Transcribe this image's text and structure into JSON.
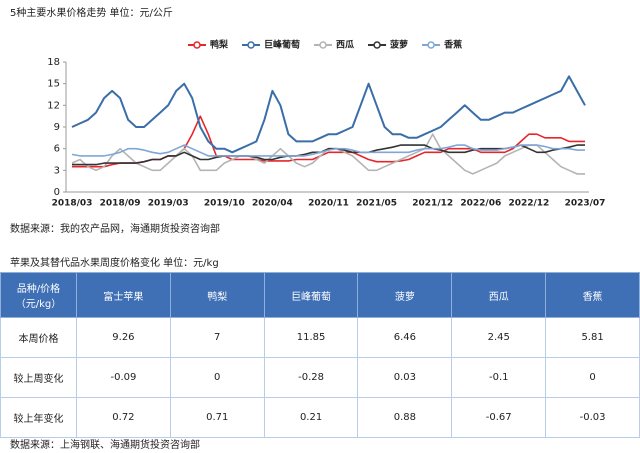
{
  "chart_data": {
    "type": "line",
    "title": "5种主要水果价格走势 单位：元/公斤",
    "categories": [
      "2018/03",
      null,
      null,
      null,
      null,
      null,
      "2018/09",
      null,
      null,
      null,
      null,
      null,
      "2019/03",
      null,
      null,
      null,
      null,
      null,
      null,
      "2019/10",
      null,
      null,
      null,
      null,
      null,
      "2020/04",
      null,
      null,
      null,
      null,
      null,
      null,
      "2020/11",
      null,
      null,
      null,
      null,
      null,
      "2021/05",
      null,
      null,
      null,
      null,
      null,
      null,
      "2021/12",
      null,
      null,
      null,
      null,
      null,
      "2022/06",
      null,
      null,
      null,
      null,
      null,
      "2022/12",
      null,
      null,
      null,
      null,
      null,
      null,
      "2023/07"
    ],
    "series": [
      {
        "name": "鸭梨",
        "color": "#e8262a",
        "values": [
          3.5,
          3.5,
          3.5,
          3.5,
          3.5,
          3.8,
          4,
          4,
          4,
          4.2,
          4.5,
          4.5,
          5,
          5,
          6,
          8,
          10.5,
          8,
          5,
          5,
          4.5,
          4.5,
          4.5,
          4.5,
          4.3,
          4.3,
          4.3,
          4.3,
          4.5,
          4.5,
          4.5,
          5,
          5.5,
          5.5,
          5.5,
          5.5,
          5,
          4.5,
          4.2,
          4.2,
          4.2,
          4.3,
          4.5,
          5,
          5.5,
          5.5,
          5.5,
          6,
          6,
          6,
          6,
          5.5,
          5.5,
          5.5,
          5.5,
          6,
          7,
          8,
          8,
          7.5,
          7.5,
          7.5,
          7,
          7,
          7
        ]
      },
      {
        "name": "巨峰葡萄",
        "color": "#3a6ea8",
        "values": [
          9,
          9.5,
          10,
          11,
          13,
          14,
          13,
          10,
          9,
          9,
          10,
          11,
          12,
          14,
          15,
          13,
          9,
          7,
          6,
          6,
          5.5,
          6,
          6.5,
          7,
          10,
          14,
          12,
          8,
          7,
          7,
          7,
          7.5,
          8,
          8,
          8.5,
          9,
          12,
          15,
          12,
          9,
          8,
          8,
          7.5,
          7.5,
          8,
          8.5,
          9,
          10,
          11,
          12,
          11,
          10,
          10,
          10.5,
          11,
          11,
          11.5,
          12,
          12.5,
          13,
          13.5,
          14,
          16,
          14,
          12
        ]
      },
      {
        "name": "西瓜",
        "color": "#b4b4b4",
        "values": [
          4,
          4.5,
          3.5,
          3,
          3.5,
          5,
          6,
          5,
          4,
          3.5,
          3,
          3,
          4,
          5,
          6,
          5,
          3,
          3,
          3,
          4,
          4.5,
          5,
          5,
          4.5,
          4,
          5,
          6,
          5,
          4,
          3.5,
          4,
          5,
          6,
          6,
          5.5,
          5,
          4,
          3,
          3,
          3.5,
          4,
          4.5,
          5,
          5.5,
          6,
          8,
          6,
          5,
          4,
          3,
          2.5,
          3,
          3.5,
          4,
          5,
          5.5,
          6,
          6.5,
          6.5,
          5.5,
          4.5,
          3.5,
          3,
          2.5,
          2.5
        ]
      },
      {
        "name": "菠萝",
        "color": "#333333",
        "values": [
          3.8,
          3.8,
          3.8,
          3.8,
          4,
          4,
          4,
          4,
          4,
          4.2,
          4.5,
          4.5,
          5,
          5,
          5.5,
          5,
          4.5,
          4.5,
          4.8,
          5,
          5,
          5,
          5,
          4.8,
          4.5,
          4.5,
          4.8,
          5,
          5,
          5.2,
          5.5,
          5.5,
          6,
          6,
          5.8,
          5.5,
          5.5,
          5.5,
          5.8,
          6,
          6.2,
          6.5,
          6.5,
          6.5,
          6.5,
          6,
          5.8,
          5.5,
          5.5,
          5.5,
          5.8,
          6,
          6,
          6,
          6,
          6.2,
          6.5,
          6,
          5.5,
          5.5,
          5.8,
          6,
          6.2,
          6.5,
          6.5
        ]
      },
      {
        "name": "香蕉",
        "color": "#7fa7d6",
        "values": [
          5.2,
          5,
          5,
          5,
          5,
          5.2,
          5.5,
          6,
          6,
          5.8,
          5.5,
          5.3,
          5.5,
          6,
          6.5,
          6,
          5.5,
          5,
          5,
          5,
          5,
          5,
          5,
          5,
          5,
          5,
          5,
          5,
          5,
          5,
          5.2,
          5.5,
          5.8,
          6,
          6,
          5.8,
          5.5,
          5.5,
          5.5,
          5.5,
          5.5,
          5.5,
          5.5,
          5.8,
          6,
          6,
          6,
          6.2,
          6.5,
          6.5,
          6,
          5.8,
          5.8,
          5.8,
          6,
          6.2,
          6.5,
          6.5,
          6.5,
          6.3,
          6,
          6,
          6,
          5.8,
          5.8
        ]
      }
    ],
    "ylim": [
      0,
      18
    ],
    "yticks": [
      0,
      3,
      6,
      9,
      12,
      15,
      18
    ],
    "grid": false,
    "legend": "top"
  },
  "chart_source": "数据来源：我的农产品网，海通期货投资咨询部",
  "table_title": "苹果及其替代品水果周度价格变化 单位：元/kg",
  "table": {
    "header": [
      "品种/价格（元/kg）",
      "富士苹果",
      "鸭梨",
      "巨峰葡萄",
      "菠萝",
      "西瓜",
      "香蕉"
    ],
    "rows": [
      [
        "本周价格",
        "9.26",
        "7",
        "11.85",
        "6.46",
        "2.45",
        "5.81"
      ],
      [
        "较上周变化",
        "-0.09",
        "0",
        "-0.28",
        "0.03",
        "-0.1",
        "0"
      ],
      [
        "较上年变化",
        "0.72",
        "0.71",
        "0.21",
        "0.88",
        "-0.67",
        "-0.03"
      ]
    ]
  },
  "table_source": "数据来源：上海钢联、海通期货投资咨询部"
}
